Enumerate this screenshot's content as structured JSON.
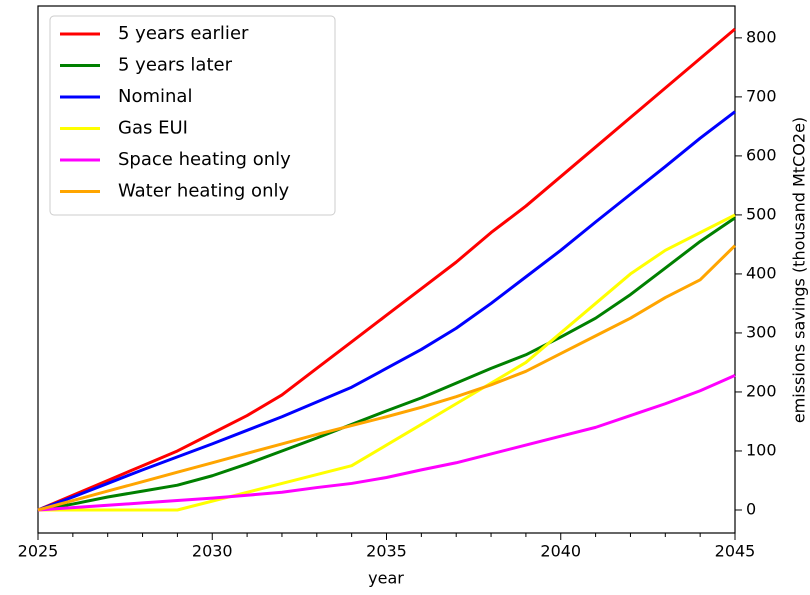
{
  "chart_data": {
    "type": "line",
    "x": [
      2025,
      2026,
      2027,
      2028,
      2029,
      2030,
      2031,
      2032,
      2033,
      2034,
      2035,
      2036,
      2037,
      2038,
      2039,
      2040,
      2041,
      2042,
      2043,
      2044,
      2045
    ],
    "series": [
      {
        "name": "5 years earlier",
        "color": "#ff0000",
        "values": [
          0,
          25,
          50,
          75,
          100,
          130,
          160,
          195,
          240,
          285,
          330,
          375,
          420,
          470,
          515,
          565,
          615,
          665,
          715,
          765,
          815
        ]
      },
      {
        "name": "5 years later",
        "color": "#008000",
        "values": [
          0,
          10,
          22,
          32,
          42,
          58,
          78,
          100,
          122,
          145,
          168,
          190,
          215,
          240,
          263,
          293,
          325,
          365,
          410,
          455,
          495
        ]
      },
      {
        "name": "Nominal",
        "color": "#0000ff",
        "values": [
          0,
          22,
          45,
          68,
          90,
          112,
          135,
          158,
          183,
          208,
          240,
          272,
          308,
          350,
          395,
          440,
          488,
          535,
          582,
          630,
          675
        ]
      },
      {
        "name": "Gas EUI",
        "color": "#ffff00",
        "values": [
          0,
          0,
          0,
          0,
          0,
          15,
          30,
          45,
          60,
          75,
          110,
          145,
          180,
          215,
          250,
          300,
          350,
          400,
          440,
          470,
          500
        ]
      },
      {
        "name": "Space heating only",
        "color": "#ff00ff",
        "values": [
          0,
          4,
          8,
          12,
          16,
          20,
          25,
          30,
          38,
          45,
          55,
          68,
          80,
          95,
          110,
          125,
          140,
          160,
          180,
          202,
          228
        ]
      },
      {
        "name": "Water heating only",
        "color": "#ffa500",
        "values": [
          0,
          16,
          32,
          48,
          64,
          80,
          96,
          112,
          128,
          143,
          158,
          174,
          192,
          212,
          235,
          265,
          295,
          325,
          360,
          390,
          448
        ]
      }
    ],
    "xlabel": "year",
    "ylabel": "emissions savings (thousand MtCO2e)",
    "xlim": [
      2025,
      2045
    ],
    "xticks": [
      2025,
      2030,
      2035,
      2040,
      2045
    ],
    "xminorticks": [
      2026,
      2027,
      2028,
      2029,
      2031,
      2032,
      2033,
      2034,
      2036,
      2037,
      2038,
      2039,
      2041,
      2042,
      2043,
      2044
    ],
    "ylim": [
      -39,
      854
    ],
    "yticks": [
      0,
      100,
      200,
      300,
      400,
      500,
      600,
      700,
      800
    ],
    "y_axis_side": "right",
    "legend": "upper left",
    "grid": false
  }
}
